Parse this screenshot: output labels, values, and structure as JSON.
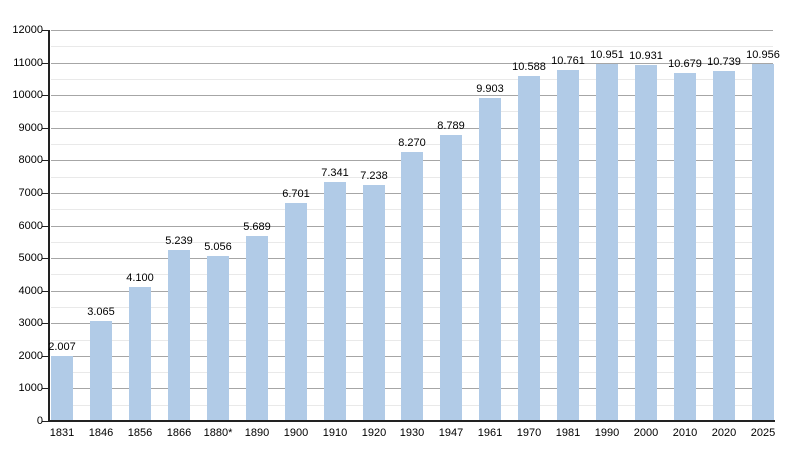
{
  "chart": {
    "background_color": "#ffffff",
    "bar_color": "#b1cbe7",
    "major_grid_color": "#a6a6a6",
    "minor_grid_color": "#e9e9e9",
    "axis_color": "#222222",
    "text_color": "#000000"
  },
  "chart_data": {
    "type": "bar",
    "title": "",
    "xlabel": "",
    "ylabel": "",
    "legend": "none",
    "grid": "horizontal, major lines at 1000 with minor lines at 500",
    "categories": [
      "1831",
      "1846",
      "1856",
      "1866",
      "1880*",
      "1890",
      "1900",
      "1910",
      "1920",
      "1930",
      "1947",
      "1961",
      "1970",
      "1981",
      "1990",
      "2000",
      "2010",
      "2020",
      "2025"
    ],
    "values": [
      2007,
      3065,
      4100,
      5239,
      5056,
      5689,
      6701,
      7341,
      7238,
      8270,
      8789,
      9903,
      10588,
      10761,
      10951,
      10931,
      10679,
      10739,
      10956
    ],
    "value_labels": [
      "2.007",
      "3.065",
      "4.100",
      "5.239",
      "5.056",
      "5.689",
      "6.701",
      "7.341",
      "7.238",
      "8.270",
      "8.789",
      "9.903",
      "10.588",
      "10.761",
      "10.951",
      "10.931",
      "10.679",
      "10.739",
      "10.956"
    ],
    "ylim": [
      0,
      12000
    ],
    "y_major_step": 1000,
    "y_minor_step": 500,
    "y_tick_labels": [
      "0",
      "1000",
      "2000",
      "3000",
      "4000",
      "5000",
      "6000",
      "7000",
      "8000",
      "9000",
      "10000",
      "11000",
      "12000"
    ]
  }
}
